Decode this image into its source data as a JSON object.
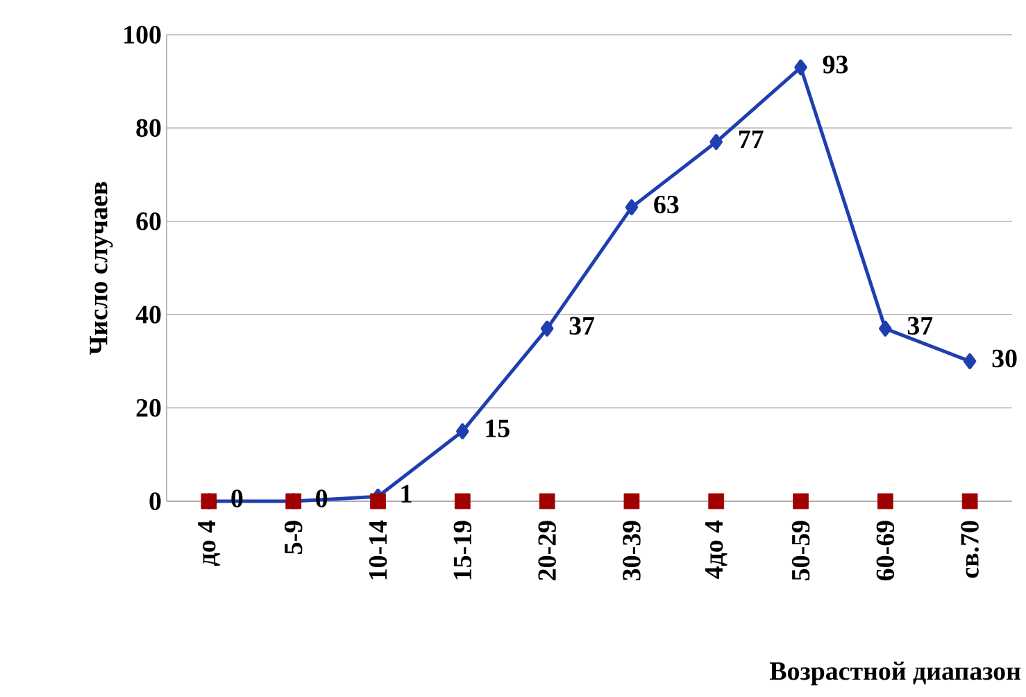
{
  "chart_data": {
    "type": "line",
    "xlabel": "Возрастной  диапазон",
    "ylabel": "Число случаев",
    "categories": [
      "до 4",
      "5-9",
      "10-14",
      "15-19",
      "20-29",
      "30-39",
      "4до 4",
      "50-59",
      "60-69",
      "св.70"
    ],
    "ylim": [
      0,
      100
    ],
    "yticks": [
      0,
      20,
      40,
      60,
      80,
      100
    ],
    "grid": "y",
    "series": [
      {
        "color": "#1f3fb0",
        "marker": "diamond",
        "values": [
          0,
          0,
          1,
          15,
          37,
          63,
          77,
          93,
          37,
          30
        ],
        "value_labels": [
          "0",
          "0",
          "1",
          "15",
          "37",
          "63",
          "77",
          "93",
          "37",
          "30"
        ]
      },
      {
        "type": "scatter",
        "color": "#a00000",
        "marker": "square",
        "values": [
          0,
          0,
          0,
          0,
          0,
          0,
          0,
          0,
          0,
          0
        ]
      }
    ]
  }
}
